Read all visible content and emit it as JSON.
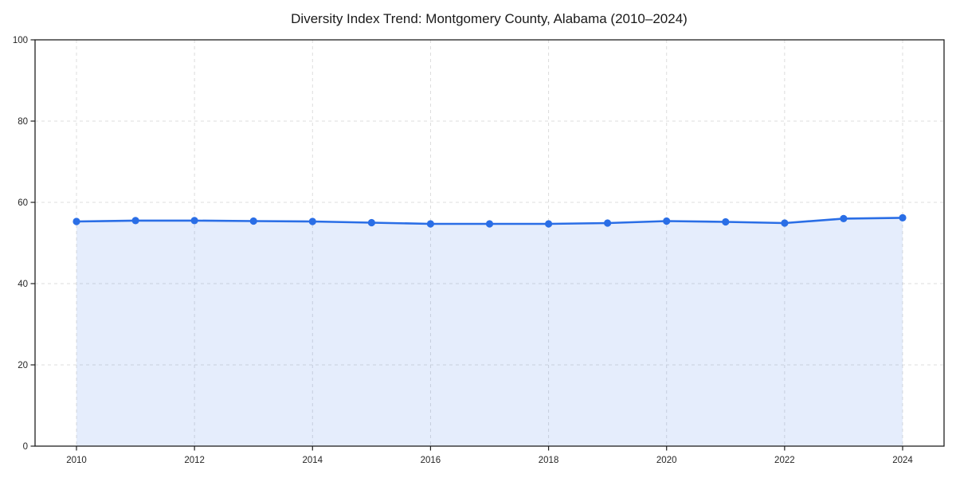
{
  "chart_data": {
    "type": "area",
    "title": "Diversity Index Trend: Montgomery County, Alabama (2010–2024)",
    "x": [
      2010,
      2011,
      2012,
      2013,
      2014,
      2015,
      2016,
      2017,
      2018,
      2019,
      2020,
      2021,
      2022,
      2023,
      2024
    ],
    "series": [
      {
        "name": "Diversity Index",
        "values": [
          55.3,
          55.5,
          55.5,
          55.4,
          55.3,
          55.0,
          54.7,
          54.7,
          54.7,
          54.9,
          55.4,
          55.2,
          54.9,
          56.0,
          56.2
        ]
      }
    ],
    "xlabel": "",
    "ylabel": "",
    "ylim": [
      0,
      100
    ],
    "yticks": [
      0,
      20,
      40,
      60,
      80,
      100
    ],
    "xticks": [
      2010,
      2012,
      2014,
      2016,
      2018,
      2020,
      2022,
      2024
    ],
    "grid": true,
    "grid_style": "dashed",
    "legend": "none",
    "marker": "circle",
    "colors": {
      "line": "#2a6ee6",
      "fill": "#2a6ee6",
      "fill_opacity": "0.12",
      "grid": "#d9d9d9",
      "spine": "#1f1f1f",
      "tick": "#1f1f1f",
      "tick_label": "#262626",
      "title": "#1a1a1a",
      "background": "#ffffff"
    }
  }
}
